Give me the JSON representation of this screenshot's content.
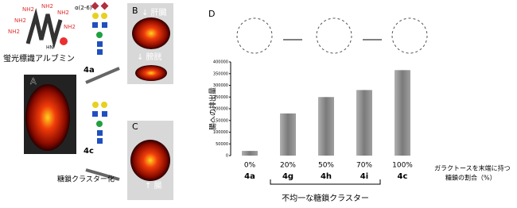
{
  "chart_data": {
    "type": "bar",
    "panel_label": "D",
    "ylabel": "腸への排出量",
    "categories": [
      "4a",
      "4g",
      "4h",
      "4i",
      "4c"
    ],
    "subcategories": [
      "0%",
      "20%",
      "50%",
      "70%",
      "100%"
    ],
    "values": [
      20000,
      180000,
      250000,
      280000,
      365000
    ],
    "color": "#8c8c8c",
    "ylim": [
      0,
      400000
    ],
    "yticks": [
      0,
      50000,
      100000,
      150000,
      200000,
      250000,
      300000,
      350000,
      400000
    ],
    "xlabel": [
      "ガラクトースを末端に持つ",
      "糖鎖の割合（%）"
    ],
    "bracket_label": "不均一な糖鎖クラスター"
  },
  "molecule": {
    "name": "蛍光標識アルブミン",
    "amine": "NH2",
    "linkage": "α(2-6)-",
    "hn": "HN"
  },
  "compounds": [
    "4a",
    "4c"
  ],
  "process": "糖鎖クラスター化",
  "panels": {
    "a": "A",
    "b": "B",
    "c": "C",
    "liver": "↓ 肝臓",
    "bladder": "↓ 膀胱",
    "intestine": "↑ 腸"
  }
}
